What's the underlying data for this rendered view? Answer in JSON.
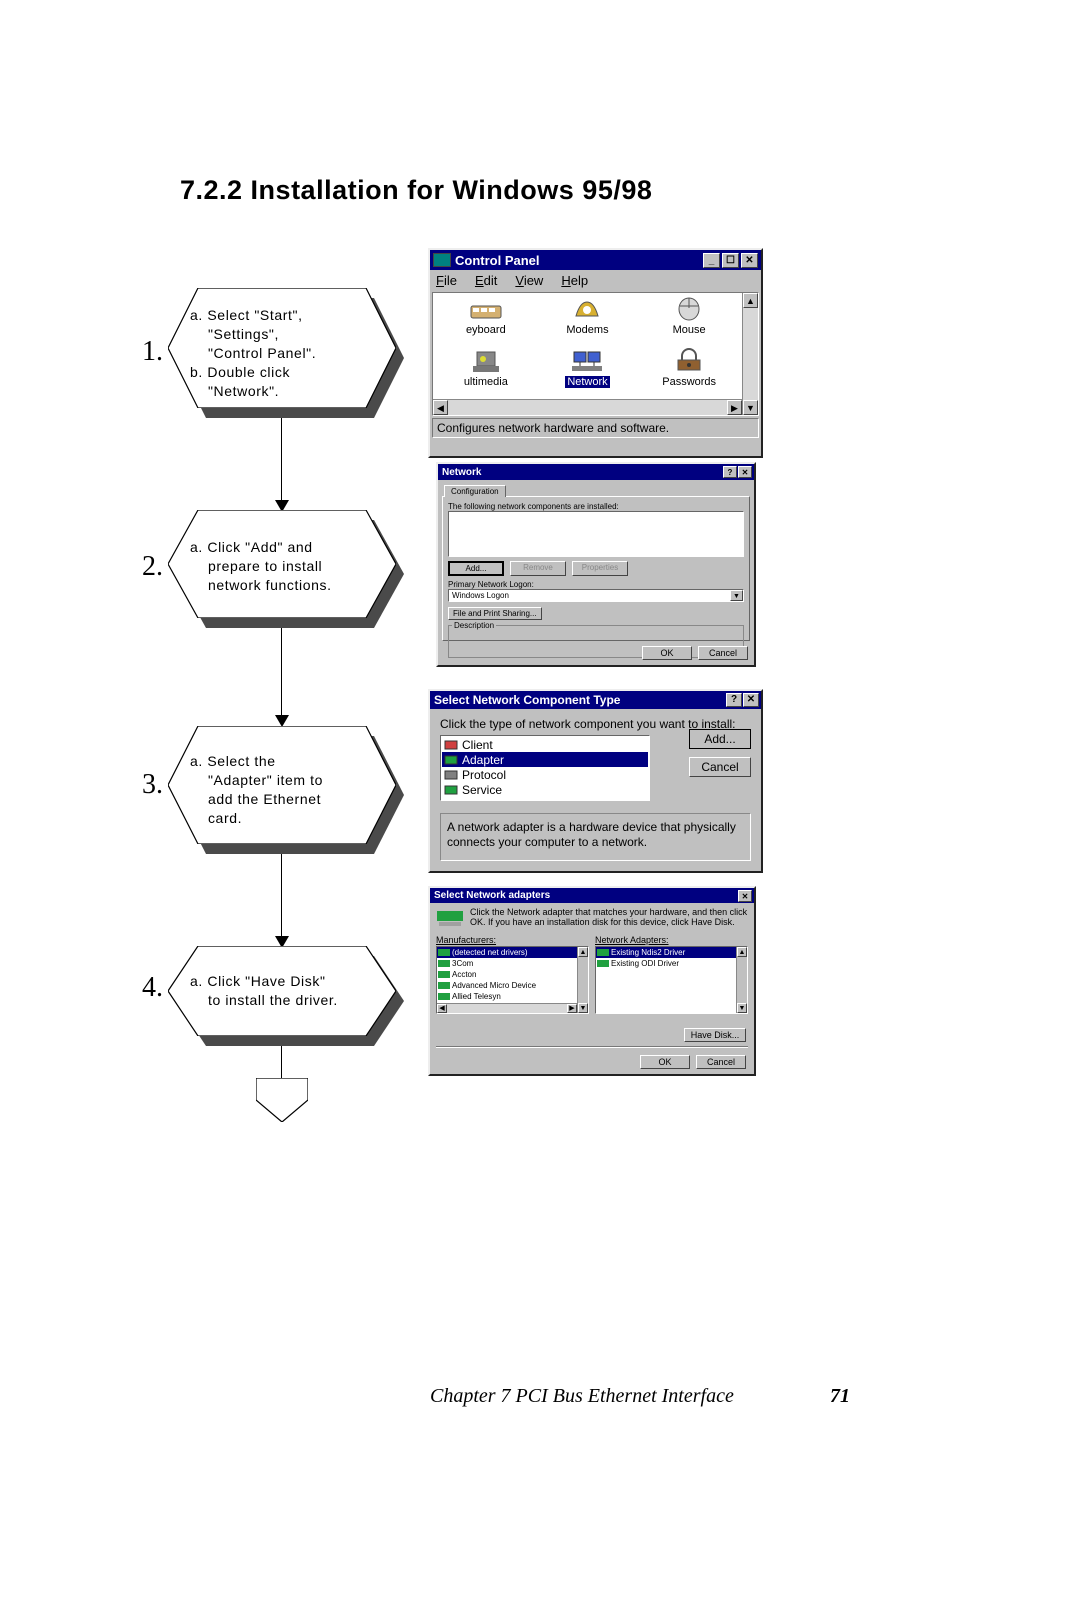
{
  "section_title": "7.2.2 Installation for Windows 95/98",
  "footer_chapter": "Chapter 7  PCI Bus Ethernet Interface",
  "footer_pageno": "71",
  "steps": [
    {
      "num": "1.",
      "lines": [
        "a. Select \"Start\",",
        "    \"Settings\",",
        "    \"Control Panel\".",
        "b. Double click",
        "    \"Network\"."
      ]
    },
    {
      "num": "2.",
      "lines": [
        "a. Click \"Add\" and",
        "    prepare to install",
        "    network functions."
      ]
    },
    {
      "num": "3.",
      "lines": [
        "a. Select the",
        "    \"Adapter\" item to",
        "    add the Ethernet",
        "    card."
      ]
    },
    {
      "num": "4.",
      "lines": [
        "a. Click \"Have Disk\"",
        "    to install the driver."
      ]
    }
  ],
  "cp": {
    "title": "Control Panel",
    "menus": [
      "File",
      "Edit",
      "View",
      "Help"
    ],
    "winbtns": {
      "min": "_",
      "max": "☐",
      "close": "✕"
    },
    "items": [
      {
        "label": "eyboard",
        "icon_fill": "#d4b070",
        "selected": false
      },
      {
        "label": "Modems",
        "icon_fill": "#d8b030",
        "selected": false
      },
      {
        "label": "Mouse",
        "icon_fill": "#d8d8d8",
        "selected": false
      },
      {
        "label": "ultimedia",
        "icon_fill": "#888888",
        "selected": false
      },
      {
        "label": "Network",
        "icon_fill": "#4060d0",
        "selected": true
      },
      {
        "label": "Passwords",
        "icon_fill": "#906030",
        "selected": false
      }
    ],
    "status": "Configures network hardware and software."
  },
  "dlg2": {
    "title": "Network",
    "tab": "Configuration",
    "text1": "The following network components are installed:",
    "btns": [
      "Add...",
      "Remove",
      "Properties"
    ],
    "logon_label": "Primary Network Logon:",
    "logon_value": "Windows Logon",
    "share_btn": "File and Print Sharing...",
    "group_label": "Description",
    "ok": "OK",
    "cancel": "Cancel"
  },
  "dlg3": {
    "title": "Select Network Component Type",
    "prompt": "Click the type of network component you want to install:",
    "items": [
      {
        "label": "Client",
        "color": "#d04040",
        "selected": false
      },
      {
        "label": "Adapter",
        "color": "#20a040",
        "selected": true
      },
      {
        "label": "Protocol",
        "color": "#808080",
        "selected": false
      },
      {
        "label": "Service",
        "color": "#20a040",
        "selected": false
      }
    ],
    "add": "Add...",
    "cancel": "Cancel",
    "desc": "A network adapter is a hardware device that physically connects your computer to a network."
  },
  "dlg4": {
    "title": "Select Network adapters",
    "instr": "Click the Network adapter that matches your hardware, and then click OK. If you have an installation disk for this device, click Have Disk.",
    "left_hdr": "Manufacturers:",
    "right_hdr": "Network Adapters:",
    "left_items": [
      {
        "label": "(detected net drivers)",
        "selected": true
      },
      {
        "label": "3Com",
        "selected": false
      },
      {
        "label": "Accton",
        "selected": false
      },
      {
        "label": "Advanced Micro Device",
        "selected": false
      },
      {
        "label": "Allied Telesyn",
        "selected": false
      }
    ],
    "right_items": [
      {
        "label": "Existing Ndis2 Driver",
        "selected": true
      },
      {
        "label": "Existing ODI Driver",
        "selected": false
      }
    ],
    "havedisk": "Have Disk...",
    "ok": "OK",
    "cancel": "Cancel"
  },
  "colors": {
    "titlebar": "#000080",
    "win_gray": "#c0c0c0"
  }
}
